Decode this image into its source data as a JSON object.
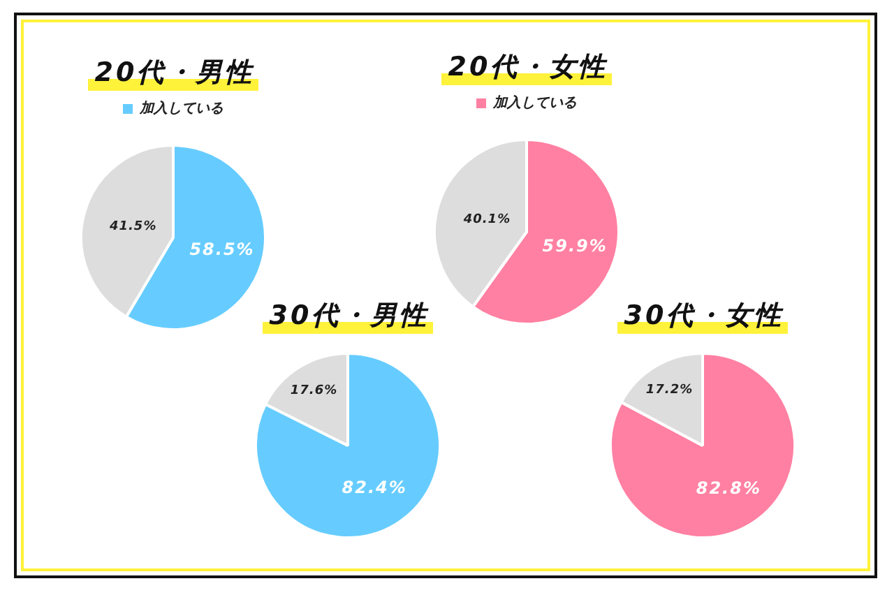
{
  "chart_data": [
    {
      "type": "pie",
      "title": "20代・男性",
      "categories": [
        "加入している",
        null
      ],
      "values": [
        58.5,
        41.5
      ],
      "colors": [
        "#66ccff",
        "#dddddd"
      ],
      "value_labels": [
        "58.5%",
        "41.5%"
      ],
      "legend": "top"
    },
    {
      "type": "pie",
      "title": "20代・女性",
      "categories": [
        "加入している",
        null
      ],
      "values": [
        59.9,
        40.1
      ],
      "colors": [
        "#ff80a2",
        "#dddddd"
      ],
      "value_labels": [
        "59.9%",
        "40.1%"
      ],
      "legend": "top"
    },
    {
      "type": "pie",
      "title": "30代・男性",
      "categories": [
        null,
        null
      ],
      "values": [
        82.4,
        17.6
      ],
      "colors": [
        "#66ccff",
        "#dddddd"
      ],
      "value_labels": [
        "82.4%",
        "17.6%"
      ]
    },
    {
      "type": "pie",
      "title": "30代・女性",
      "categories": [
        null,
        null
      ],
      "values": [
        82.8,
        17.2
      ],
      "colors": [
        "#ff80a2",
        "#dddddd"
      ],
      "value_labels": [
        "82.8%",
        "17.2%"
      ]
    }
  ]
}
